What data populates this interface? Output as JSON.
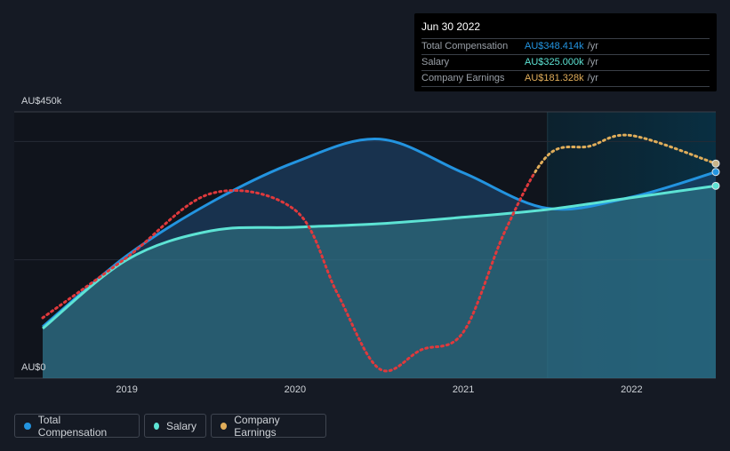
{
  "colors": {
    "total": "#2394e0",
    "salary": "#5de3d4",
    "earnings_neg": "#e0393c",
    "earnings": "#e0ad5a"
  },
  "tooltip": {
    "date": "Jun 30 2022",
    "rows": [
      {
        "label": "Total Compensation",
        "value": "AU$348.414k",
        "unit": "/yr"
      },
      {
        "label": "Salary",
        "value": "AU$325.000k",
        "unit": "/yr"
      },
      {
        "label": "Company Earnings",
        "value": "AU$181.328k",
        "unit": "/yr"
      }
    ]
  },
  "legend": [
    "Total Compensation",
    "Salary",
    "Company Earnings"
  ],
  "chart_data": {
    "type": "line",
    "ylabel_top": "AU$450k",
    "ylabel_bottom": "AU$0",
    "ylim": [
      0,
      450
    ],
    "earnings_ylim": [
      0,
      225
    ],
    "xlim": [
      2018.5,
      2022.5
    ],
    "forecast_start": 2021.5,
    "earnings_color_change": 2021.42,
    "xticks": [
      "2019",
      "2020",
      "2021",
      "2022"
    ],
    "xtick_values": [
      2019,
      2020,
      2021,
      2022
    ],
    "series": [
      {
        "name": "Total Compensation",
        "x": [
          2018.5,
          2019,
          2019.5,
          2020,
          2020.5,
          2021,
          2021.5,
          2022,
          2022.5
        ],
        "values": [
          87,
          207,
          297,
          365,
          404,
          347,
          287,
          306,
          348.414
        ]
      },
      {
        "name": "Salary",
        "x": [
          2018.5,
          2019,
          2019.5,
          2020,
          2020.5,
          2021,
          2021.5,
          2022,
          2022.5
        ],
        "values": [
          84,
          200,
          249,
          255,
          261,
          272,
          285,
          305,
          325
        ]
      },
      {
        "name": "Company Earnings",
        "x": [
          2018.5,
          2019,
          2019.5,
          2020,
          2020.25,
          2020.5,
          2020.75,
          2021,
          2021.25,
          2021.5,
          2021.75,
          2022,
          2022.5
        ],
        "values": [
          51,
          102,
          156,
          142,
          72,
          8,
          24,
          39,
          125,
          188,
          196,
          205,
          181.328
        ]
      }
    ]
  }
}
